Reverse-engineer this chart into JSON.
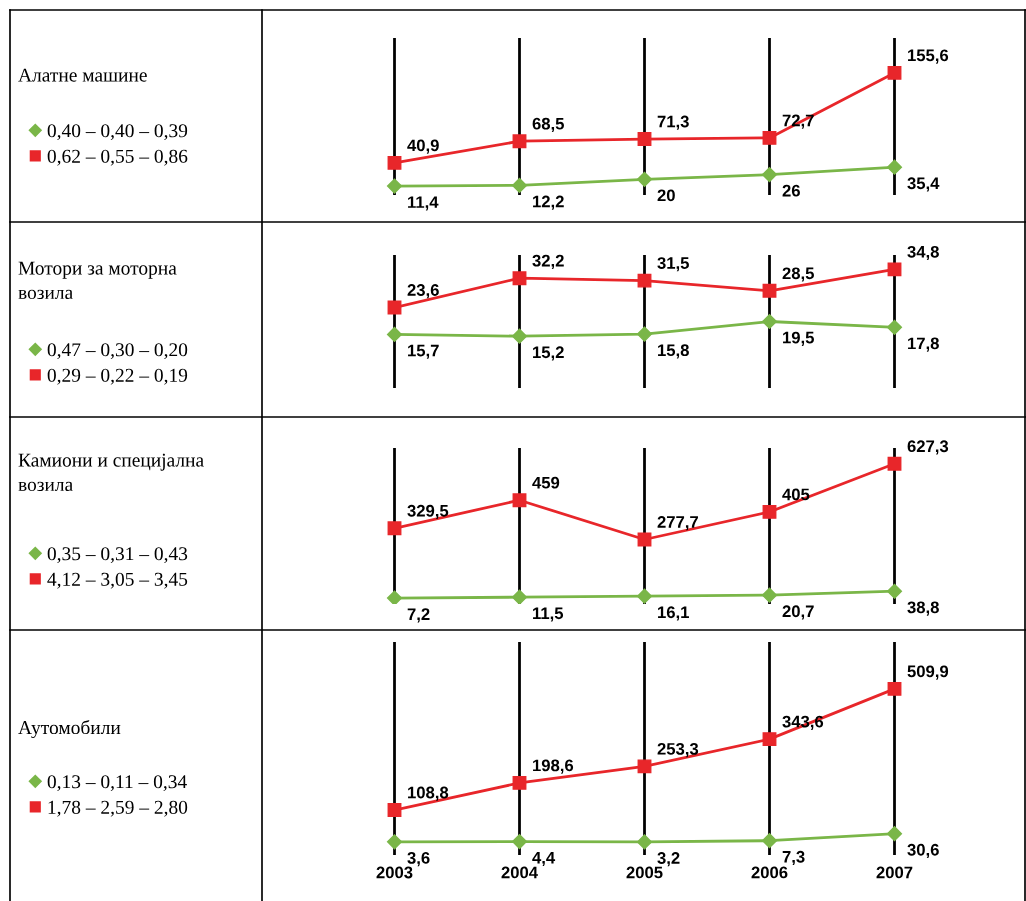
{
  "chart_data": [
    {
      "type": "line",
      "ylabel": "Алатне машине",
      "categories": [
        null,
        null,
        null,
        null,
        null
      ],
      "ylim": [
        0,
        200
      ],
      "grid": "x",
      "legend": "left",
      "tick_labels": false,
      "series": [
        {
          "name": "0,40 – 0,40 – 0,39",
          "color": "#7ab648",
          "marker": "diamond",
          "values": [
            11.4,
            12.2,
            20,
            26,
            35.4
          ],
          "value_labels": [
            "11,4",
            "12,2",
            "20",
            "26",
            "35,4"
          ]
        },
        {
          "name": "0,62 – 0,55 – 0,86",
          "color": "#e8262a",
          "marker": "square",
          "values": [
            40.9,
            68.5,
            71.3,
            72.7,
            155.6
          ],
          "value_labels": [
            "40,9",
            "68,5",
            "71,3",
            "72,7",
            "155,6"
          ]
        }
      ]
    },
    {
      "type": "line",
      "ylabel": "Мотори за моторна\nвозила",
      "categories": [
        null,
        null,
        null,
        null,
        null
      ],
      "ylim": [
        0,
        39
      ],
      "grid": "x",
      "legend": "left",
      "tick_labels": false,
      "series": [
        {
          "name": "0,47 – 0,30 – 0,20",
          "color": "#7ab648",
          "marker": "diamond",
          "values": [
            15.7,
            15.2,
            15.8,
            19.5,
            17.8
          ],
          "value_labels": [
            "15,7",
            "15,2",
            "15,8",
            "19,5",
            "17,8"
          ]
        },
        {
          "name": "0,29 – 0,22 – 0,19",
          "color": "#e8262a",
          "marker": "square",
          "values": [
            23.6,
            32.2,
            31.5,
            28.5,
            34.8
          ],
          "value_labels": [
            "23,6",
            "32,2",
            "31,5",
            "28,5",
            "34,8"
          ]
        }
      ]
    },
    {
      "type": "line",
      "ylabel": "Камиони и специјална\nвозила",
      "categories": [
        null,
        null,
        null,
        null,
        null
      ],
      "ylim": [
        -20,
        700
      ],
      "grid": "x",
      "legend": "left",
      "tick_labels": false,
      "series": [
        {
          "name": "0,35 – 0,31 – 0,43",
          "color": "#7ab648",
          "marker": "diamond",
          "values": [
            7.2,
            11.5,
            16.1,
            20.7,
            38.8
          ],
          "value_labels": [
            "7,2",
            "11,5",
            "16,1",
            "20,7",
            "38,8"
          ]
        },
        {
          "name": "4,12 – 3,05 – 3,45",
          "color": "#e8262a",
          "marker": "square",
          "values": [
            329.5,
            459,
            277.7,
            405,
            627.3
          ],
          "value_labels": [
            "329,5",
            "459",
            "277,7",
            "405",
            "627,3"
          ]
        }
      ]
    },
    {
      "type": "line",
      "ylabel": "Аутомобили",
      "categories": [
        "2003",
        "2004",
        "2005",
        "2006",
        "2007"
      ],
      "ylim": [
        -40,
        665
      ],
      "grid": "x",
      "legend": "left",
      "tick_labels": "x",
      "series": [
        {
          "name": "0,13 – 0,11 – 0,34",
          "color": "#7ab648",
          "marker": "diamond",
          "values": [
            3.6,
            4.4,
            3.2,
            7.3,
            30.6
          ],
          "value_labels": [
            "3,6",
            "4,4",
            "3,2",
            "7,3",
            "30,6"
          ]
        },
        {
          "name": "1,78 – 2,59 – 2,80",
          "color": "#e8262a",
          "marker": "square",
          "values": [
            108.8,
            198.6,
            253.3,
            343.6,
            509.9
          ],
          "value_labels": [
            "108,8",
            "198,6",
            "253,3",
            "343,6",
            "509,9"
          ]
        }
      ]
    }
  ]
}
